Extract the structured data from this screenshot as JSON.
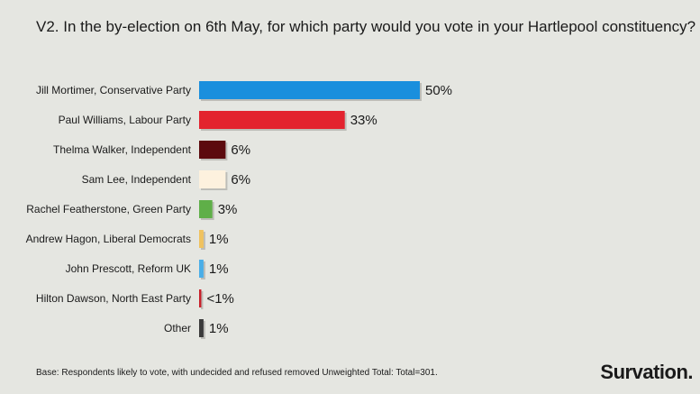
{
  "chart_data": {
    "type": "bar",
    "orientation": "horizontal",
    "title": "V2. In the by-election on 6th May, for which party would you vote in your Hartlepool constituency?",
    "categories": [
      "Jill Mortimer, Conservative Party",
      "Paul Williams, Labour Party",
      "Thelma Walker, Independent",
      "Sam Lee, Independent",
      "Rachel Featherstone, Green Party",
      "Andrew Hagon, Liberal Democrats",
      "John Prescott, Reform UK",
      "Hilton Dawson, North East Party",
      "Other"
    ],
    "values": [
      50,
      33,
      6,
      6,
      3,
      1,
      1,
      0.5,
      1
    ],
    "value_labels": [
      "50%",
      "33%",
      "6%",
      "6%",
      "3%",
      "1%",
      "1%",
      "<1%",
      "1%"
    ],
    "colors": [
      "#1a8fdd",
      "#e3232e",
      "#5c0a0e",
      "#fdf1de",
      "#5faf48",
      "#f0c25e",
      "#4aaee8",
      "#c8202a",
      "#3a3a3a"
    ],
    "xlim": [
      0,
      50
    ],
    "grid": false,
    "legend": "none"
  },
  "footnote": "Base: Respondents likely to vote, with undecided and refused removed Unweighted Total: Total=301.",
  "logo": "Survation."
}
